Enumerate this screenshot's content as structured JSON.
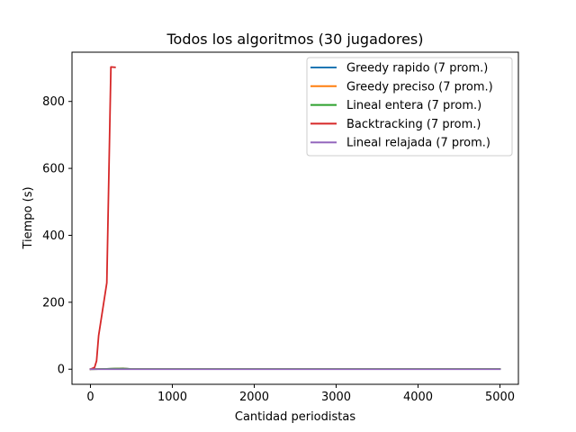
{
  "chart_data": {
    "type": "line",
    "title": "Todos los algoritmos (30 jugadores)",
    "xlabel": "Cantidad periodistas",
    "ylabel": "Tiempo (s)",
    "xlim": [
      -225,
      5225
    ],
    "ylim": [
      -45.1,
      947.1
    ],
    "xticks": [
      0,
      1000,
      2000,
      3000,
      4000,
      5000
    ],
    "yticks": [
      0,
      200,
      400,
      600,
      800
    ],
    "grid": false,
    "legend_position": "top-right",
    "series": [
      {
        "name": "Greedy rapido  (7 prom.)",
        "color": "#1f77b4",
        "x": [
          0,
          100,
          200,
          300,
          400,
          500,
          1000,
          2000,
          3000,
          4000,
          5000
        ],
        "y": [
          0,
          0.5,
          1,
          2,
          2.5,
          0.5,
          0.5,
          0.5,
          0.5,
          0.5,
          0.5
        ]
      },
      {
        "name": "Greedy preciso  (7 prom.)",
        "color": "#ff7f0e",
        "x": [
          0,
          100,
          200,
          300,
          400,
          500,
          1000,
          2000,
          3000,
          4000,
          5000
        ],
        "y": [
          0,
          0.5,
          1,
          1.5,
          2,
          0.5,
          0.5,
          0.5,
          0.5,
          0.5,
          0.5
        ]
      },
      {
        "name": "Lineal entera  (7 prom.)",
        "color": "#2ca02c",
        "x": [
          0,
          100,
          200,
          300,
          400,
          500,
          1000,
          2000,
          3000,
          4000,
          5000
        ],
        "y": [
          0,
          0.5,
          1,
          1.5,
          1.5,
          0.5,
          0.5,
          0.5,
          0.5,
          0.5,
          0.5
        ]
      },
      {
        "name": "Backtracking (7 prom.)",
        "color": "#d62728",
        "x": [
          0,
          50,
          75,
          100,
          200,
          250,
          300
        ],
        "y": [
          0,
          5,
          25,
          100,
          258,
          903,
          902
        ]
      },
      {
        "name": "Lineal relajada  (7 prom.)",
        "color": "#9467bd",
        "x": [
          0,
          100,
          200,
          300,
          400,
          500,
          1000,
          2000,
          3000,
          4000,
          5000
        ],
        "y": [
          0,
          0,
          0,
          0,
          0,
          0,
          0,
          0,
          0,
          0,
          0
        ]
      }
    ]
  }
}
